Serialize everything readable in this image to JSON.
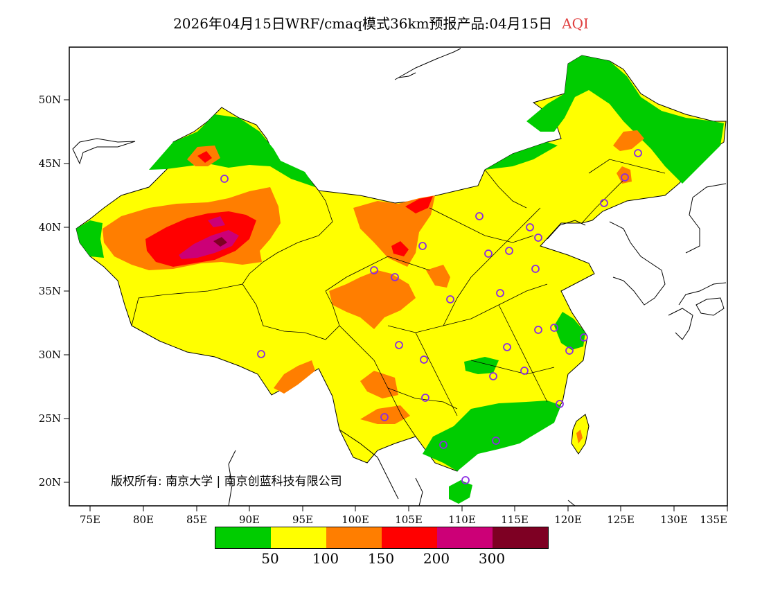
{
  "title": {
    "text": "2026年04月15日WRF/cmaq模式36km预报产品:04月15日",
    "quantity": "AQI"
  },
  "axes": {
    "lat_labels": [
      "50N",
      "45N",
      "40N",
      "35N",
      "30N",
      "25N",
      "20N"
    ],
    "lon_labels": [
      "75E",
      "80E",
      "85E",
      "90E",
      "95E",
      "100E",
      "105E",
      "110E",
      "115E",
      "120E",
      "125E",
      "130E",
      "135E"
    ]
  },
  "copyright": "版权所有: 南京大学 | 南京创蓝科技有限公司",
  "legend": {
    "colors": [
      "#00cc00",
      "#ffff00",
      "#ff7e00",
      "#ff0000",
      "#cc0077",
      "#7e0023"
    ],
    "labels": [
      "50",
      "100",
      "150",
      "200",
      "300"
    ]
  }
}
